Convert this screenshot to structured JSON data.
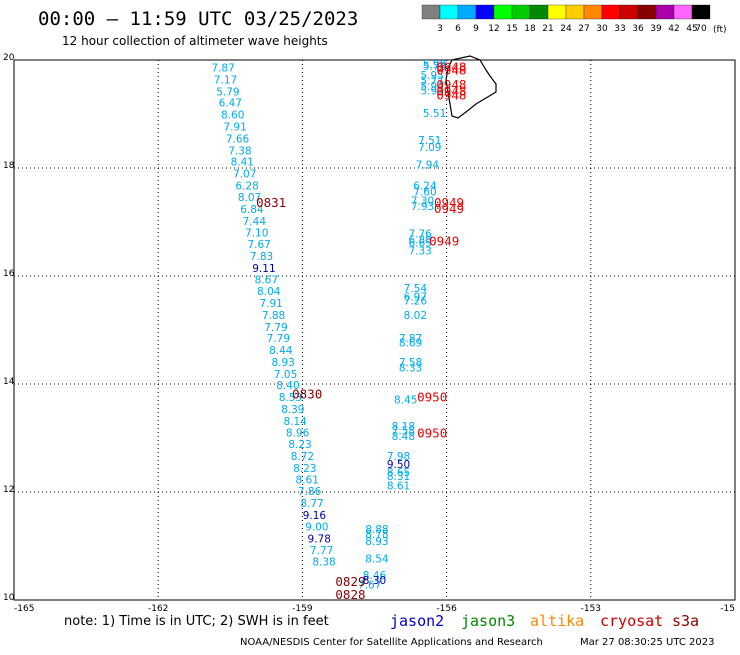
{
  "header": {
    "title": "00:00 – 11:59 UTC 03/25/2023",
    "subtitle": "12 hour collection of altimeter wave heights"
  },
  "colorbar": {
    "unit": "(ft)",
    "ticks": [
      "3",
      "6",
      "9",
      "12",
      "15",
      "18",
      "21",
      "24",
      "27",
      "30",
      "33",
      "36",
      "39",
      "42",
      "45",
      "70"
    ],
    "colors": [
      "#808080",
      "#00ffff",
      "#00aaff",
      "#0000ff",
      "#00ff00",
      "#00cc00",
      "#008800",
      "#ffff00",
      "#ffcc00",
      "#ff8800",
      "#ff0000",
      "#cc0000",
      "#880000",
      "#aa00aa",
      "#ff66ff",
      "#000000"
    ]
  },
  "footer": {
    "note": "note: 1) Time is in UTC; 2) SWH is in feet",
    "satellites": [
      {
        "name": "jason2",
        "color": "#0000cc"
      },
      {
        "name": "jason3",
        "color": "#008800"
      },
      {
        "name": "altika",
        "color": "#ff8800"
      },
      {
        "name": "cryosat",
        "color": "#cc0000"
      },
      {
        "name": "s3a",
        "color": "#880000"
      }
    ],
    "credit": "NOAA/NESDIS Center for Satellite Applications and Research",
    "generated": "Mar 27 08:30:25 UTC 2023"
  },
  "chart_data": {
    "type": "scatter",
    "xlim": [
      -165,
      -150
    ],
    "ylim": [
      10,
      20
    ],
    "x_ticks": [
      "-165",
      "-162",
      "-159",
      "-156",
      "-153",
      "-15"
    ],
    "y_ticks": [
      "20",
      "18",
      "16",
      "14",
      "12",
      "10"
    ],
    "grid": true,
    "track_colors": {
      "light": "#00aaee",
      "mid": "#0077cc",
      "dark": "#0000aa"
    },
    "points": [
      {
        "lon": -160.65,
        "lat": 19.84,
        "label": "7.87",
        "c": "light"
      },
      {
        "lon": -160.6,
        "lat": 19.62,
        "label": "7.17",
        "c": "light"
      },
      {
        "lon": -160.55,
        "lat": 19.4,
        "label": "5.79",
        "c": "light"
      },
      {
        "lon": -160.5,
        "lat": 19.19,
        "label": "6.47",
        "c": "light"
      },
      {
        "lon": -160.45,
        "lat": 18.97,
        "label": "8.60",
        "c": "light"
      },
      {
        "lon": -160.4,
        "lat": 18.75,
        "label": "7.91",
        "c": "light"
      },
      {
        "lon": -160.35,
        "lat": 18.53,
        "label": "7.66",
        "c": "light"
      },
      {
        "lon": -160.3,
        "lat": 18.31,
        "label": "7.38",
        "c": "light"
      },
      {
        "lon": -160.25,
        "lat": 18.1,
        "label": "8.41",
        "c": "light"
      },
      {
        "lon": -160.2,
        "lat": 17.88,
        "label": "7.07",
        "c": "light"
      },
      {
        "lon": -160.15,
        "lat": 17.66,
        "label": "6.28",
        "c": "light"
      },
      {
        "lon": -160.1,
        "lat": 17.44,
        "label": "8.07",
        "c": "light"
      },
      {
        "lon": -160.05,
        "lat": 17.22,
        "label": "6.84",
        "c": "light"
      },
      {
        "lon": -160.0,
        "lat": 17.0,
        "label": "7.44",
        "c": "light"
      },
      {
        "lon": -159.95,
        "lat": 16.79,
        "label": "7.10",
        "c": "light"
      },
      {
        "lon": -159.9,
        "lat": 16.57,
        "label": "7.67",
        "c": "light"
      },
      {
        "lon": -159.85,
        "lat": 16.35,
        "label": "7.83",
        "c": "light"
      },
      {
        "lon": -159.8,
        "lat": 16.13,
        "label": "9.11",
        "c": "dark"
      },
      {
        "lon": -159.75,
        "lat": 15.92,
        "label": "8.67",
        "c": "light"
      },
      {
        "lon": -159.7,
        "lat": 15.7,
        "label": "8.04",
        "c": "light"
      },
      {
        "lon": -159.65,
        "lat": 15.48,
        "label": "7.91",
        "c": "light"
      },
      {
        "lon": -159.6,
        "lat": 15.26,
        "label": "7.88",
        "c": "light"
      },
      {
        "lon": -159.55,
        "lat": 15.04,
        "label": "7.79",
        "c": "light"
      },
      {
        "lon": -159.5,
        "lat": 14.83,
        "label": "7.79",
        "c": "light"
      },
      {
        "lon": -159.45,
        "lat": 14.61,
        "label": "8.44",
        "c": "light"
      },
      {
        "lon": -159.4,
        "lat": 14.39,
        "label": "8.93",
        "c": "light"
      },
      {
        "lon": -159.35,
        "lat": 14.17,
        "label": "7.05",
        "c": "light"
      },
      {
        "lon": -159.3,
        "lat": 13.96,
        "label": "8.40",
        "c": "light"
      },
      {
        "lon": -159.25,
        "lat": 13.74,
        "label": "8.53",
        "c": "light"
      },
      {
        "lon": -159.2,
        "lat": 13.52,
        "label": "8.39",
        "c": "light"
      },
      {
        "lon": -159.15,
        "lat": 13.3,
        "label": "8.14",
        "c": "light"
      },
      {
        "lon": -159.1,
        "lat": 13.08,
        "label": "8.96",
        "c": "light"
      },
      {
        "lon": -159.05,
        "lat": 12.87,
        "label": "8.23",
        "c": "light"
      },
      {
        "lon": -159.0,
        "lat": 12.65,
        "label": "8.72",
        "c": "light"
      },
      {
        "lon": -158.95,
        "lat": 12.43,
        "label": "8.23",
        "c": "light"
      },
      {
        "lon": -158.9,
        "lat": 12.21,
        "label": "8.61",
        "c": "light"
      },
      {
        "lon": -158.85,
        "lat": 12.0,
        "label": "7.86",
        "c": "light"
      },
      {
        "lon": -158.8,
        "lat": 11.78,
        "label": "8.77",
        "c": "light"
      },
      {
        "lon": -158.75,
        "lat": 11.56,
        "label": "9.16",
        "c": "dark"
      },
      {
        "lon": -158.7,
        "lat": 11.34,
        "label": "9.00",
        "c": "light"
      },
      {
        "lon": -158.65,
        "lat": 11.12,
        "label": "9.78",
        "c": "dark"
      },
      {
        "lon": -158.6,
        "lat": 10.91,
        "label": "7.77",
        "c": "light"
      },
      {
        "lon": -158.55,
        "lat": 10.69,
        "label": "8.38",
        "c": "light"
      },
      {
        "lon": -156.25,
        "lat": 19.91,
        "label": "5.98",
        "c": "light"
      },
      {
        "lon": -156.25,
        "lat": 19.87,
        "label": "5.78",
        "c": "light"
      },
      {
        "lon": -156.3,
        "lat": 19.7,
        "label": "5.95",
        "c": "light"
      },
      {
        "lon": -156.3,
        "lat": 19.6,
        "label": "5.77",
        "c": "light"
      },
      {
        "lon": -156.3,
        "lat": 19.5,
        "label": "5.94",
        "c": "light"
      },
      {
        "lon": -156.3,
        "lat": 19.42,
        "label": "5.97",
        "c": "light"
      },
      {
        "lon": -156.25,
        "lat": 19.0,
        "label": "5.51",
        "c": "light"
      },
      {
        "lon": -156.35,
        "lat": 18.5,
        "label": "7.51",
        "c": "light"
      },
      {
        "lon": -156.35,
        "lat": 18.37,
        "label": "7.09",
        "c": "light"
      },
      {
        "lon": -156.4,
        "lat": 18.05,
        "label": "7.94",
        "c": "light"
      },
      {
        "lon": -156.45,
        "lat": 17.66,
        "label": "6.24",
        "c": "light"
      },
      {
        "lon": -156.45,
        "lat": 17.55,
        "label": "7.60",
        "c": "light"
      },
      {
        "lon": -156.5,
        "lat": 17.38,
        "label": "7.30",
        "c": "light"
      },
      {
        "lon": -156.5,
        "lat": 17.28,
        "label": "7.93",
        "c": "light"
      },
      {
        "lon": -156.55,
        "lat": 16.77,
        "label": "7.76",
        "c": "light"
      },
      {
        "lon": -156.55,
        "lat": 16.66,
        "label": "6.88",
        "c": "light"
      },
      {
        "lon": -156.55,
        "lat": 16.6,
        "label": "6.65",
        "c": "light"
      },
      {
        "lon": -156.55,
        "lat": 16.45,
        "label": "7.33",
        "c": "light"
      },
      {
        "lon": -156.65,
        "lat": 15.76,
        "label": "7.54",
        "c": "light"
      },
      {
        "lon": -156.65,
        "lat": 15.6,
        "label": "6.97",
        "c": "light"
      },
      {
        "lon": -156.65,
        "lat": 15.53,
        "label": "7.26",
        "c": "light"
      },
      {
        "lon": -156.65,
        "lat": 15.26,
        "label": "8.02",
        "c": "light"
      },
      {
        "lon": -156.75,
        "lat": 14.83,
        "label": "7.87",
        "c": "light"
      },
      {
        "lon": -156.75,
        "lat": 14.75,
        "label": "8.69",
        "c": "light"
      },
      {
        "lon": -156.75,
        "lat": 14.39,
        "label": "7.58",
        "c": "light"
      },
      {
        "lon": -156.75,
        "lat": 14.29,
        "label": "8.33",
        "c": "light"
      },
      {
        "lon": -156.85,
        "lat": 13.69,
        "label": "8.45",
        "c": "light"
      },
      {
        "lon": -156.9,
        "lat": 13.2,
        "label": "8.18",
        "c": "light"
      },
      {
        "lon": -156.9,
        "lat": 13.12,
        "label": "7.58",
        "c": "light"
      },
      {
        "lon": -156.9,
        "lat": 13.02,
        "label": "8.48",
        "c": "light"
      },
      {
        "lon": -157.0,
        "lat": 12.65,
        "label": "7.98",
        "c": "light"
      },
      {
        "lon": -157.0,
        "lat": 12.5,
        "label": "9.50",
        "c": "dark"
      },
      {
        "lon": -157.0,
        "lat": 12.35,
        "label": "8.65",
        "c": "light"
      },
      {
        "lon": -157.0,
        "lat": 12.28,
        "label": "8.31",
        "c": "light"
      },
      {
        "lon": -157.0,
        "lat": 12.1,
        "label": "8.61",
        "c": "light"
      },
      {
        "lon": -157.45,
        "lat": 11.3,
        "label": "8.88",
        "c": "light"
      },
      {
        "lon": -157.45,
        "lat": 11.2,
        "label": "8.78",
        "c": "light"
      },
      {
        "lon": -157.45,
        "lat": 11.07,
        "label": "8.93",
        "c": "light"
      },
      {
        "lon": -157.45,
        "lat": 10.75,
        "label": "8.54",
        "c": "light"
      },
      {
        "lon": -157.5,
        "lat": 10.44,
        "label": "8.46",
        "c": "light"
      },
      {
        "lon": -157.5,
        "lat": 10.35,
        "label": "8.30",
        "c": "dark"
      },
      {
        "lon": -157.6,
        "lat": 10.27,
        "label": "7.67",
        "c": "light"
      }
    ],
    "passes": [
      {
        "lon": -155.9,
        "lat": 19.85,
        "label": "0948",
        "color": "#ee0000"
      },
      {
        "lon": -155.9,
        "lat": 19.8,
        "label": "0948",
        "color": "#ee0000"
      },
      {
        "lon": -155.9,
        "lat": 19.53,
        "label": "0948",
        "color": "#ee0000"
      },
      {
        "lon": -155.9,
        "lat": 19.41,
        "label": "0948",
        "color": "#ee0000"
      },
      {
        "lon": -155.9,
        "lat": 19.33,
        "label": "0948",
        "color": "#ee0000"
      },
      {
        "lon": -155.95,
        "lat": 17.34,
        "label": "0949",
        "color": "#ee0000"
      },
      {
        "lon": -155.95,
        "lat": 17.23,
        "label": "0949",
        "color": "#ee0000"
      },
      {
        "lon": -156.05,
        "lat": 16.63,
        "label": "0949",
        "color": "#ee0000"
      },
      {
        "lon": -156.3,
        "lat": 13.74,
        "label": "0950",
        "color": "#ee0000"
      },
      {
        "lon": -156.3,
        "lat": 13.07,
        "label": "0950",
        "color": "#ee0000"
      },
      {
        "lon": -159.65,
        "lat": 17.34,
        "label": "0831",
        "color": "#880000"
      },
      {
        "lon": -158.9,
        "lat": 13.8,
        "label": "0830",
        "color": "#880000"
      },
      {
        "lon": -158.0,
        "lat": 10.32,
        "label": "0829",
        "color": "#880000"
      },
      {
        "lon": -158.0,
        "lat": 10.08,
        "label": "0828",
        "color": "#880000"
      }
    ]
  }
}
